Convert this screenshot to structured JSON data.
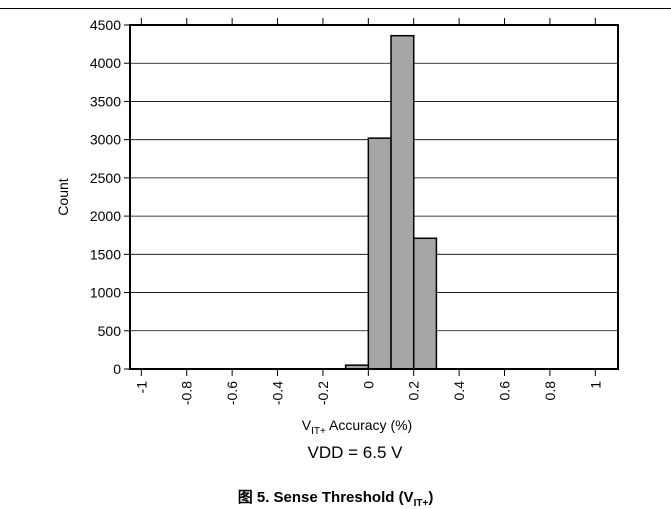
{
  "chart_data": {
    "type": "bar",
    "xlabel": {
      "main": "V",
      "sub": "IT+",
      "rest": " Accuracy (%)"
    },
    "ylabel": "Count",
    "ylim": [
      0,
      4500
    ],
    "xlim": [
      -1.05,
      1.1
    ],
    "yticks": [
      0,
      500,
      1000,
      1500,
      2000,
      2500,
      3000,
      3500,
      4000,
      4500
    ],
    "xticks": [
      "-1",
      "-0.8",
      "-0.6",
      "-0.4",
      "-0.2",
      "0",
      "0.2",
      "0.4",
      "0.6",
      "0.8",
      "1"
    ],
    "xtick_values": [
      -1,
      -0.8,
      -0.6,
      -0.4,
      -0.2,
      0,
      0.2,
      0.4,
      0.6,
      0.8,
      1
    ],
    "bins": [
      {
        "x0": -0.1,
        "x1": 0.0,
        "value": 50
      },
      {
        "x0": 0.0,
        "x1": 0.1,
        "value": 3020
      },
      {
        "x0": 0.1,
        "x1": 0.2,
        "value": 4360
      },
      {
        "x0": 0.2,
        "x1": 0.3,
        "value": 1710
      }
    ],
    "bar_color": "#a6a6a6",
    "gridlines": "horizontal",
    "annotation": "VDD = 6.5 V"
  },
  "caption": {
    "prefix": "图 5. Sense Threshold (V",
    "sub": "IT+",
    "suffix": ")"
  }
}
